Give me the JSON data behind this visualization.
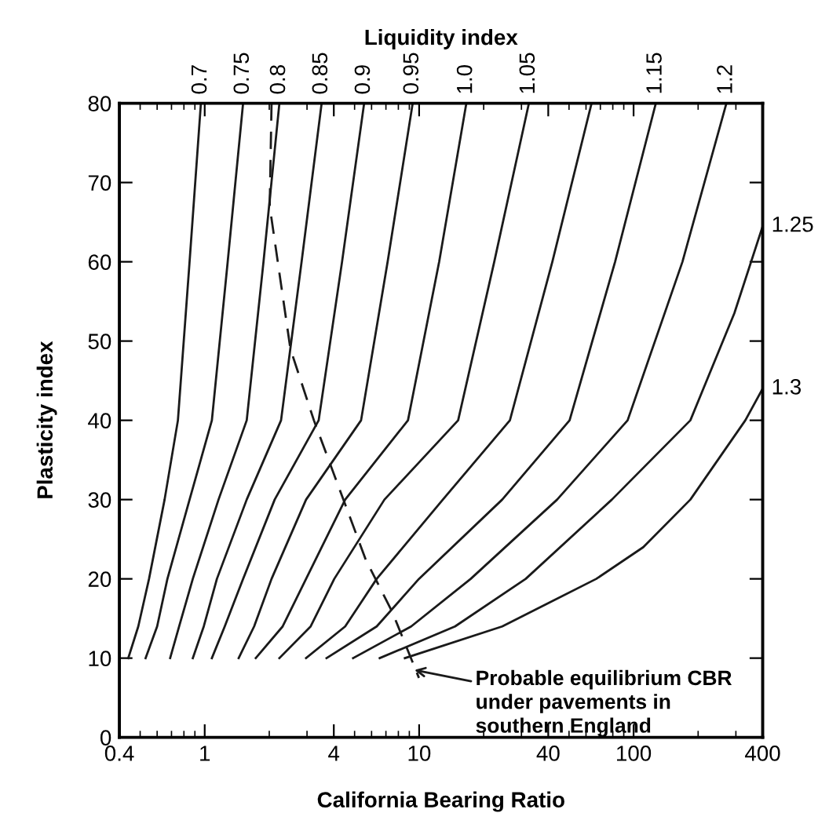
{
  "chart_data": {
    "type": "line",
    "xlabel": "California Bearing Ratio",
    "ylabel": "Plasticity index",
    "legend_title": "Liquidity index",
    "log": "x",
    "xlim": [
      0.4,
      400
    ],
    "ylim": [
      0,
      80
    ],
    "xticks": [
      0.4,
      1,
      4,
      10,
      40,
      100,
      400
    ],
    "yticks": [
      0,
      10,
      20,
      30,
      40,
      50,
      60,
      70,
      80
    ],
    "grid": false,
    "legend": false,
    "marker": "none",
    "line_style": "solid",
    "series": [
      {
        "name": "0.7",
        "color": "#1a1a1a",
        "x": [
          0.44,
          0.49,
          0.55,
          0.65,
          0.75,
          0.85,
          0.96
        ],
        "values": [
          10,
          14,
          20,
          30,
          40,
          60,
          80
        ]
      },
      {
        "name": "0.75",
        "color": "#1a1a1a",
        "x": [
          0.53,
          0.6,
          0.67,
          0.85,
          1.08,
          1.28,
          1.51
        ],
        "values": [
          10,
          14,
          20,
          30,
          40,
          60,
          80
        ]
      },
      {
        "name": "0.8",
        "color": "#1a1a1a",
        "x": [
          0.69,
          0.76,
          0.88,
          1.16,
          1.57,
          1.88,
          2.23
        ],
        "values": [
          10,
          14,
          20,
          30,
          40,
          60,
          80
        ]
      },
      {
        "name": "0.85",
        "color": "#1a1a1a",
        "x": [
          0.88,
          0.99,
          1.14,
          1.57,
          2.27,
          2.83,
          3.51
        ],
        "values": [
          10,
          14,
          20,
          30,
          40,
          60,
          80
        ]
      },
      {
        "name": "0.9",
        "color": "#1a1a1a",
        "x": [
          1.08,
          1.24,
          1.51,
          2.12,
          3.4,
          4.37,
          5.54
        ],
        "values": [
          10,
          14,
          20,
          30,
          40,
          60,
          80
        ]
      },
      {
        "name": "0.95",
        "color": "#1a1a1a",
        "x": [
          1.44,
          1.7,
          2.05,
          2.97,
          5.36,
          7.13,
          9.33
        ],
        "values": [
          10,
          14,
          20,
          30,
          40,
          60,
          80
        ]
      },
      {
        "name": "1.0",
        "color": "#1a1a1a",
        "x": [
          1.73,
          2.31,
          2.97,
          4.52,
          8.87,
          12.4,
          16.6
        ],
        "values": [
          10,
          14,
          20,
          30,
          40,
          60,
          80
        ]
      },
      {
        "name": "1.05",
        "color": "#1a1a1a",
        "x": [
          2.23,
          3.12,
          4.02,
          6.89,
          15.2,
          22.4,
          32.5
        ],
        "values": [
          10,
          14,
          20,
          30,
          40,
          60,
          80
        ]
      },
      {
        "color": "#1a1a1a",
        "x": [
          2.97,
          4.52,
          6.34,
          12.9,
          26.5,
          41.8,
          63.7
        ],
        "values": [
          10,
          14,
          20,
          30,
          40,
          60,
          80
        ]
      },
      {
        "name": "1.15",
        "color": "#1a1a1a",
        "x": [
          3.7,
          6.34,
          9.98,
          24.4,
          50.3,
          82,
          127
        ],
        "values": [
          10,
          14,
          20,
          30,
          40,
          60,
          80
        ]
      },
      {
        "name": "1.2",
        "color": "#1a1a1a",
        "x": [
          4.92,
          9.18,
          17.4,
          44,
          93.8,
          169,
          271
        ],
        "values": [
          10,
          14,
          20,
          30,
          40,
          60,
          80
        ]
      },
      {
        "name": "1.25",
        "color": "#1a1a1a",
        "x": [
          6.55,
          14.7,
          31.4,
          79.2,
          184,
          295,
          400
        ],
        "values": [
          10,
          14,
          20,
          30,
          40,
          53.5,
          64.5
        ]
      },
      {
        "name": "1.3",
        "color": "#1a1a1a",
        "x": [
          8.58,
          24.4,
          67,
          111,
          184,
          332,
          400
        ],
        "values": [
          10,
          14,
          20,
          24,
          30,
          40,
          44
        ]
      },
      {
        "color": "#1a1a1a",
        "line_style": "dashed",
        "x": [
          2.05,
          2.01,
          2.51,
          3.23,
          5.64,
          7.5,
          9.98
        ],
        "values": [
          80,
          67,
          49,
          40,
          22.4,
          15.8,
          7.5
        ]
      }
    ],
    "annotations": [
      {
        "text": "Probable equilibrium CBR\nunder pavements in\nsouthern England",
        "x": 9.5,
        "y": 8.5
      }
    ]
  }
}
